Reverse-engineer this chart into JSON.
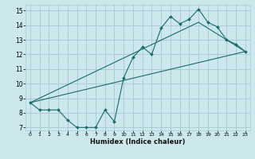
{
  "xlabel": "Humidex (Indice chaleur)",
  "bg_color": "#cce8ec",
  "grid_color": "#aaccd4",
  "line_color": "#1a6b6b",
  "xlim": [
    -0.5,
    23.5
  ],
  "ylim": [
    6.8,
    15.4
  ],
  "xticks": [
    0,
    1,
    2,
    3,
    4,
    5,
    6,
    7,
    8,
    9,
    10,
    11,
    12,
    13,
    14,
    15,
    16,
    17,
    18,
    19,
    20,
    21,
    22,
    23
  ],
  "yticks": [
    7,
    8,
    9,
    10,
    11,
    12,
    13,
    14,
    15
  ],
  "line1_x": [
    0,
    1,
    2,
    3,
    4,
    5,
    6,
    7,
    8,
    9,
    10,
    11,
    12,
    13,
    14,
    15,
    16,
    17,
    18,
    19,
    20,
    21,
    22,
    23
  ],
  "line1_y": [
    8.7,
    8.2,
    8.2,
    8.2,
    7.5,
    7.0,
    7.0,
    7.0,
    8.2,
    7.4,
    10.4,
    11.8,
    12.5,
    12.0,
    13.8,
    14.6,
    14.1,
    14.4,
    15.1,
    14.2,
    13.9,
    13.0,
    12.7,
    12.2
  ],
  "line2_x": [
    0,
    23
  ],
  "line2_y": [
    8.7,
    12.2
  ],
  "line3_x": [
    0,
    18,
    23
  ],
  "line3_y": [
    8.7,
    14.2,
    12.2
  ]
}
